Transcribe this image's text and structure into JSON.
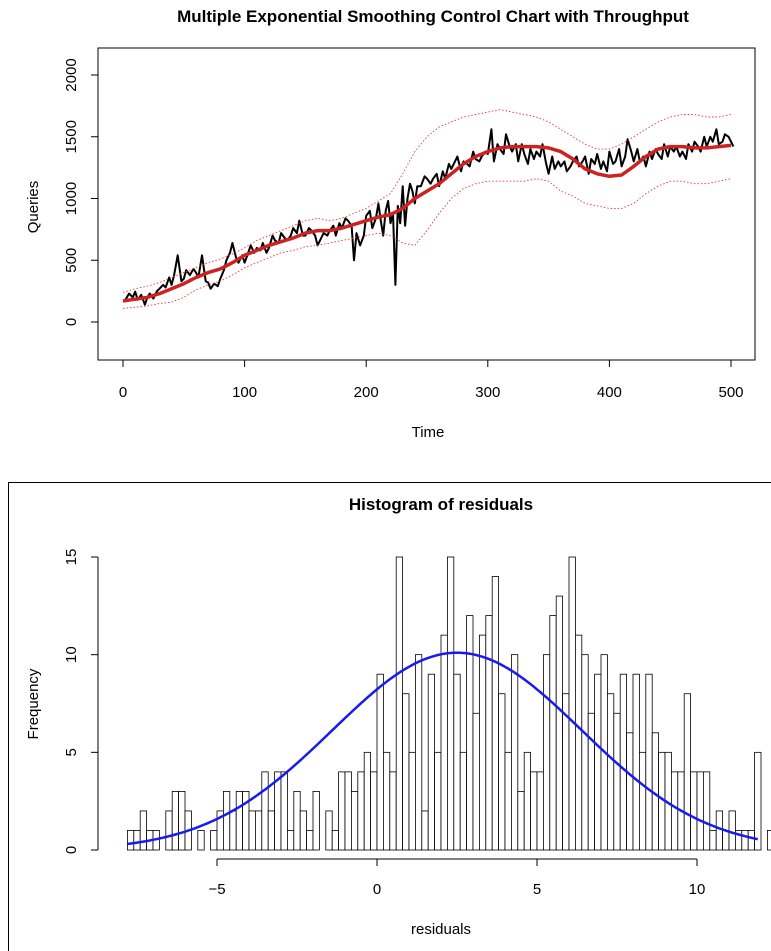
{
  "chart_data": [
    {
      "type": "line",
      "title": "Multiple Exponential Smoothing Control Chart with Throughput",
      "xlabel": "Time",
      "ylabel": "Queries",
      "xlim": [
        0,
        520
      ],
      "ylim": [
        -300,
        2000
      ],
      "x_ticks": [
        0,
        100,
        200,
        300,
        400,
        500
      ],
      "y_ticks": [
        0,
        500,
        1000,
        1500,
        2000
      ],
      "grid": false,
      "series": [
        {
          "color": "#000000",
          "style": "solid",
          "x": [
            1,
            5,
            8,
            10,
            12,
            15,
            18,
            20,
            22,
            25,
            28,
            30,
            33,
            35,
            38,
            40,
            42,
            45,
            48,
            50,
            52,
            55,
            58,
            60,
            62,
            65,
            68,
            70,
            72,
            75,
            78,
            80,
            83,
            85,
            88,
            90,
            93,
            95,
            98,
            100,
            103,
            105,
            108,
            110,
            113,
            115,
            118,
            120,
            123,
            125,
            128,
            130,
            133,
            135,
            138,
            140,
            143,
            145,
            148,
            150,
            153,
            155,
            158,
            160,
            163,
            165,
            168,
            170,
            173,
            175,
            178,
            180,
            183,
            185,
            188,
            190,
            192,
            195,
            198,
            200,
            203,
            205,
            208,
            210,
            212,
            214,
            216,
            218,
            220,
            222,
            224,
            226,
            228,
            230,
            232,
            234,
            236,
            238,
            240,
            242,
            245,
            248,
            250,
            253,
            255,
            258,
            260,
            263,
            265,
            268,
            270,
            273,
            275,
            278,
            280,
            283,
            285,
            288,
            290,
            293,
            295,
            298,
            300,
            303,
            305,
            308,
            310,
            313,
            315,
            318,
            320,
            323,
            325,
            328,
            330,
            333,
            335,
            338,
            340,
            343,
            345,
            348,
            350,
            353,
            355,
            358,
            360,
            363,
            365,
            368,
            370,
            373,
            375,
            378,
            380,
            383,
            385,
            388,
            390,
            393,
            395,
            398,
            400,
            403,
            405,
            408,
            410,
            413,
            415,
            418,
            420,
            423,
            425,
            428,
            430,
            433,
            435,
            438,
            440,
            443,
            445,
            448,
            450,
            453,
            455,
            458,
            460,
            463,
            465,
            468,
            470,
            473,
            475,
            478,
            480,
            483,
            485,
            488,
            490,
            493,
            495,
            498,
            500,
            502
          ],
          "y": [
            165,
            230,
            200,
            245,
            180,
            220,
            140,
            200,
            230,
            190,
            250,
            270,
            300,
            280,
            360,
            300,
            380,
            540,
            330,
            350,
            420,
            380,
            430,
            400,
            360,
            540,
            330,
            320,
            270,
            310,
            290,
            350,
            420,
            500,
            560,
            640,
            520,
            480,
            540,
            480,
            560,
            620,
            560,
            600,
            580,
            640,
            560,
            600,
            700,
            660,
            640,
            720,
            680,
            660,
            700,
            760,
            720,
            820,
            700,
            700,
            760,
            740,
            700,
            620,
            680,
            720,
            700,
            740,
            780,
            700,
            800,
            760,
            840,
            820,
            780,
            500,
            720,
            620,
            700,
            860,
            900,
            760,
            840,
            960,
            820,
            700,
            900,
            980,
            800,
            880,
            300,
            940,
            800,
            1100,
            780,
            1000,
            1120,
            1060,
            960,
            1100,
            1100,
            1180,
            1160,
            1120,
            1160,
            1200,
            1100,
            1220,
            1160,
            1280,
            1240,
            1300,
            1340,
            1220,
            1300,
            1280,
            1260,
            1380,
            1320,
            1300,
            1340,
            1380,
            1360,
            1560,
            1300,
            1440,
            1400,
            1360,
            1520,
            1420,
            1380,
            1440,
            1300,
            1440,
            1360,
            1280,
            1400,
            1320,
            1380,
            1340,
            1440,
            1280,
            1200,
            1340,
            1240,
            1300,
            1260,
            1300,
            1220,
            1260,
            1300,
            1340,
            1260,
            1300,
            1340,
            1200,
            1320,
            1280,
            1360,
            1240,
            1300,
            1220,
            1380,
            1280,
            1300,
            1400,
            1260,
            1340,
            1480,
            1380,
            1300,
            1400,
            1300,
            1340,
            1260,
            1380,
            1320,
            1400,
            1360,
            1320,
            1440,
            1340,
            1420,
            1380,
            1420,
            1340,
            1380,
            1320,
            1440,
            1380,
            1460,
            1420,
            1380,
            1500,
            1420,
            1500,
            1460,
            1560,
            1440,
            1460,
            1520,
            1500,
            1460,
            1420
          ]
        },
        {
          "color": "#cc2222",
          "style": "solid-thick",
          "x": [
            0,
            10,
            20,
            30,
            40,
            50,
            60,
            70,
            80,
            90,
            100,
            110,
            120,
            130,
            140,
            150,
            160,
            170,
            180,
            190,
            200,
            210,
            220,
            230,
            240,
            250,
            260,
            270,
            280,
            290,
            300,
            310,
            320,
            330,
            340,
            350,
            360,
            370,
            380,
            390,
            400,
            410,
            420,
            430,
            440,
            450,
            460,
            470,
            480,
            490,
            500
          ],
          "y": [
            170,
            185,
            200,
            230,
            270,
            310,
            360,
            400,
            430,
            480,
            540,
            580,
            620,
            650,
            680,
            720,
            740,
            740,
            760,
            790,
            820,
            850,
            870,
            920,
            1000,
            1060,
            1120,
            1200,
            1280,
            1340,
            1380,
            1410,
            1420,
            1420,
            1420,
            1410,
            1380,
            1320,
            1240,
            1200,
            1180,
            1190,
            1260,
            1340,
            1400,
            1420,
            1420,
            1410,
            1410,
            1420,
            1430
          ]
        },
        {
          "color": "#ee3333",
          "style": "dotted",
          "x": [
            0,
            10,
            20,
            30,
            40,
            50,
            60,
            70,
            80,
            90,
            100,
            110,
            120,
            130,
            140,
            150,
            160,
            170,
            180,
            190,
            200,
            210,
            220,
            230,
            240,
            250,
            260,
            270,
            280,
            290,
            300,
            310,
            320,
            330,
            340,
            350,
            360,
            370,
            380,
            390,
            400,
            410,
            420,
            430,
            440,
            450,
            460,
            470,
            480,
            490,
            500
          ],
          "y": [
            240,
            270,
            290,
            320,
            360,
            400,
            440,
            480,
            510,
            550,
            600,
            660,
            700,
            740,
            780,
            820,
            840,
            820,
            840,
            880,
            920,
            980,
            1040,
            1200,
            1380,
            1500,
            1580,
            1620,
            1660,
            1680,
            1700,
            1720,
            1700,
            1680,
            1660,
            1620,
            1560,
            1500,
            1440,
            1400,
            1400,
            1440,
            1500,
            1560,
            1620,
            1660,
            1680,
            1680,
            1660,
            1660,
            1680
          ]
        },
        {
          "color": "#ee3333",
          "style": "dotted",
          "x": [
            0,
            10,
            20,
            30,
            40,
            50,
            60,
            70,
            80,
            90,
            100,
            110,
            120,
            130,
            140,
            150,
            160,
            170,
            180,
            190,
            200,
            210,
            220,
            230,
            240,
            250,
            260,
            270,
            280,
            290,
            300,
            310,
            320,
            330,
            340,
            350,
            360,
            370,
            380,
            390,
            400,
            410,
            420,
            430,
            440,
            450,
            460,
            470,
            480,
            490,
            500
          ],
          "y": [
            110,
            120,
            130,
            150,
            160,
            200,
            260,
            300,
            330,
            380,
            440,
            480,
            520,
            560,
            580,
            610,
            620,
            640,
            660,
            680,
            700,
            720,
            700,
            640,
            620,
            740,
            880,
            1000,
            1080,
            1120,
            1140,
            1140,
            1140,
            1140,
            1160,
            1140,
            1060,
            1020,
            960,
            940,
            920,
            920,
            960,
            1040,
            1100,
            1140,
            1140,
            1120,
            1120,
            1140,
            1160
          ]
        }
      ]
    },
    {
      "type": "bar",
      "title": "Histogram of residuals",
      "xlabel": "residuals",
      "ylabel": "Frequency",
      "xlim": [
        -8,
        12
      ],
      "ylim": [
        0,
        15
      ],
      "x_ticks": [
        "−5",
        "0",
        "5",
        "10"
      ],
      "x_tick_values": [
        -5,
        0,
        5,
        10
      ],
      "y_ticks": [
        0,
        5,
        10,
        15
      ],
      "bin_start": -7.8,
      "bin_width": 0.2,
      "values": [
        1,
        1,
        2,
        1,
        1,
        0,
        2,
        3,
        3,
        2,
        0,
        1,
        0,
        1,
        2,
        3,
        2,
        3,
        3,
        2,
        2,
        4,
        2,
        4,
        4,
        1,
        3,
        2,
        1,
        3,
        0,
        2,
        1,
        4,
        4,
        3,
        4,
        5,
        4,
        9,
        5,
        4,
        15,
        8,
        5,
        10,
        2,
        9,
        5,
        11,
        15,
        9,
        5,
        12,
        7,
        11,
        12,
        14,
        8,
        5,
        10,
        3,
        5,
        4,
        4,
        10,
        12,
        13,
        8,
        15,
        11,
        10,
        7,
        9,
        10,
        8,
        7,
        9,
        6,
        9,
        5,
        9,
        6,
        5,
        5,
        4,
        4,
        8,
        4,
        4,
        4,
        1,
        2,
        1,
        2,
        1,
        1,
        1,
        5,
        0,
        1,
        0,
        1
      ]
    }
  ],
  "histogram_curve": {
    "color": "#0000ee",
    "mean": 2.5,
    "sd": 3.9,
    "peak": 10.1
  },
  "colors": {
    "series_raw": "#000000",
    "series_smooth": "#cc2222",
    "control_limits": "#ee3333",
    "density_curve": "#1a1aee"
  }
}
